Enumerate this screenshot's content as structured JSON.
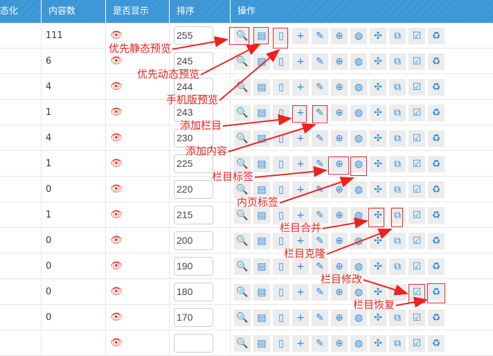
{
  "header": {
    "cols": [
      "态化",
      "内容数",
      "是否显示",
      "排序",
      "操作"
    ]
  },
  "rows": [
    {
      "count": "111",
      "sort": "255"
    },
    {
      "count": "6",
      "sort": "245"
    },
    {
      "count": "4",
      "sort": "244"
    },
    {
      "count": "1",
      "sort": "243"
    },
    {
      "count": "4",
      "sort": "230"
    },
    {
      "count": "1",
      "sort": "225"
    },
    {
      "count": "0",
      "sort": "220"
    },
    {
      "count": "1",
      "sort": "215"
    },
    {
      "count": "0",
      "sort": "200"
    },
    {
      "count": "0",
      "sort": "190"
    },
    {
      "count": "0",
      "sort": "180"
    },
    {
      "count": "0",
      "sort": "170"
    },
    {
      "count": "",
      "sort": ""
    }
  ],
  "actions": [
    {
      "icon": "search-icon",
      "glyph": "🔍"
    },
    {
      "icon": "doc-preview-icon",
      "glyph": "▤"
    },
    {
      "icon": "mobile-icon",
      "glyph": "▯"
    },
    {
      "icon": "plus-icon",
      "glyph": "+"
    },
    {
      "icon": "pencil-icon",
      "glyph": "✎"
    },
    {
      "icon": "globe-plus-icon",
      "glyph": "⊕"
    },
    {
      "icon": "globe-icon",
      "glyph": "◍"
    },
    {
      "icon": "merge-icon",
      "glyph": "✣"
    },
    {
      "icon": "clone-icon",
      "glyph": "⧉"
    },
    {
      "icon": "edit-icon",
      "glyph": "☑"
    },
    {
      "icon": "recycle-icon",
      "glyph": "♻"
    }
  ],
  "annotations": [
    "优先静态预览",
    "优先动态预览",
    "手机版预览",
    "添加栏目",
    "添加内容",
    "栏目标签",
    "内页标签",
    "栏目合并",
    "栏目克隆",
    "栏目修改",
    "栏目恢复"
  ],
  "colors": {
    "header": "#3f98d8",
    "icon": "#2c8ad6",
    "annotation": "#f0201e",
    "eye": "#e8352a"
  }
}
